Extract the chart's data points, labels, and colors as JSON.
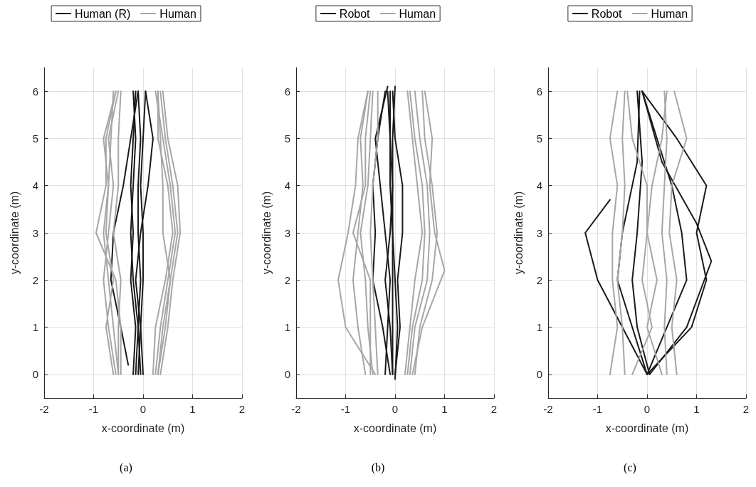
{
  "chart_data": [
    {
      "type": "line",
      "xlabel": "x-coordinate (m)",
      "ylabel": "y-coordinate (m)",
      "xlim": [
        -2,
        2
      ],
      "xticks": [
        -2,
        -1,
        0,
        1,
        2
      ],
      "ylim": [
        -0.5,
        6.5
      ],
      "yticks": [
        0,
        1,
        2,
        3,
        4,
        5,
        6
      ],
      "grid": true,
      "legend": "top",
      "annotations": [
        "(a)"
      ],
      "series": [
        {
          "name": "Human (R)",
          "color": "#1a1a1a",
          "x": [
            -0.05,
            -0.1,
            -0.05,
            -0.1,
            -0.1,
            -0.05,
            -0.1
          ],
          "values": [
            0,
            1,
            2,
            3,
            4,
            5,
            6
          ]
        },
        {
          "color": "#1a1a1a",
          "x": [
            -0.15,
            -0.1,
            -0.2,
            -0.25,
            -0.2,
            -0.15,
            -0.2
          ],
          "values": [
            0,
            1,
            2,
            3,
            4,
            5,
            6
          ]
        },
        {
          "color": "#1a1a1a",
          "x": [
            0.0,
            -0.05,
            0.0,
            0.0,
            -0.05,
            0.0,
            0.05
          ],
          "values": [
            0,
            1,
            2,
            3,
            4,
            5,
            6
          ]
        },
        {
          "color": "#1a1a1a",
          "x": [
            -0.3,
            -0.45,
            -0.65,
            -0.6,
            -0.4,
            -0.25,
            -0.1
          ],
          "values": [
            0.2,
            1,
            2,
            3,
            4,
            5,
            6
          ]
        },
        {
          "color": "#1a1a1a",
          "x": [
            -0.1,
            -0.05,
            -0.15,
            -0.05,
            0.1,
            0.2,
            0.05
          ],
          "values": [
            0,
            1,
            2,
            3,
            4,
            5,
            6
          ]
        },
        {
          "color": "#1a1a1a",
          "x": [
            -0.2,
            -0.15,
            -0.25,
            -0.2,
            -0.25,
            -0.2,
            -0.15
          ],
          "values": [
            0,
            1,
            2,
            3,
            4,
            5,
            6
          ]
        },
        {
          "name": "Human",
          "color": "#a6a6a6",
          "x": [
            -0.5,
            -0.6,
            -0.7,
            -0.8,
            -0.7,
            -0.65,
            -0.6
          ],
          "values": [
            0,
            1,
            2,
            3,
            4,
            5,
            6
          ]
        },
        {
          "color": "#a6a6a6",
          "x": [
            -0.45,
            -0.45,
            -0.55,
            -0.95,
            -0.75,
            -0.75,
            -0.55
          ],
          "values": [
            0,
            1,
            2,
            3,
            4,
            5,
            6
          ]
        },
        {
          "color": "#a6a6a6",
          "x": [
            -0.55,
            -0.7,
            -0.8,
            -0.7,
            -0.6,
            -0.7,
            -0.5
          ],
          "values": [
            0,
            1,
            2,
            3,
            4,
            5,
            6
          ]
        },
        {
          "color": "#a6a6a6",
          "x": [
            -0.5,
            -0.5,
            -0.45,
            -0.6,
            -0.5,
            -0.5,
            -0.45
          ],
          "values": [
            0,
            1,
            2,
            3,
            4,
            5,
            6
          ]
        },
        {
          "color": "#a6a6a6",
          "x": [
            -0.6,
            -0.75,
            -0.6,
            -0.75,
            -0.7,
            -0.8,
            -0.55
          ],
          "values": [
            0,
            1,
            2,
            3,
            4,
            5,
            6
          ]
        },
        {
          "color": "#a6a6a6",
          "x": [
            0.3,
            0.4,
            0.55,
            0.7,
            0.6,
            0.45,
            0.35
          ],
          "values": [
            0,
            1,
            2,
            3,
            4,
            5,
            6
          ]
        },
        {
          "color": "#a6a6a6",
          "x": [
            0.2,
            0.25,
            0.45,
            0.6,
            0.5,
            0.3,
            0.3
          ],
          "values": [
            0,
            1,
            2,
            3,
            4,
            5,
            6
          ]
        },
        {
          "color": "#a6a6a6",
          "x": [
            0.35,
            0.5,
            0.6,
            0.75,
            0.7,
            0.5,
            0.4
          ],
          "values": [
            0,
            1,
            2,
            3,
            4,
            5,
            6
          ]
        },
        {
          "color": "#a6a6a6",
          "x": [
            0.25,
            0.35,
            0.5,
            0.65,
            0.55,
            0.4,
            0.25
          ],
          "values": [
            0,
            1,
            2,
            3,
            4,
            5,
            6
          ]
        },
        {
          "color": "#a6a6a6",
          "x": [
            0.3,
            0.45,
            0.55,
            0.4,
            0.4,
            0.35,
            0.3
          ],
          "values": [
            0,
            1,
            2,
            3,
            4,
            5,
            6
          ]
        }
      ]
    },
    {
      "type": "line",
      "xlabel": "x-coordinate (m)",
      "ylabel": "y-coordinate (m)",
      "xlim": [
        -2,
        2
      ],
      "xticks": [
        -2,
        -1,
        0,
        1,
        2
      ],
      "ylim": [
        -0.5,
        6.5
      ],
      "yticks": [
        0,
        1,
        2,
        3,
        4,
        5,
        6
      ],
      "grid": true,
      "legend": "top",
      "annotations": [
        "(b)"
      ],
      "series": [
        {
          "name": "Robot",
          "color": "#1a1a1a",
          "x": [
            -0.05,
            -0.05,
            -0.05,
            -0.05,
            -0.1,
            -0.1,
            -0.1
          ],
          "values": [
            0,
            1,
            2,
            3,
            4,
            5,
            6
          ]
        },
        {
          "color": "#1a1a1a",
          "x": [
            0.0,
            0.05,
            0.0,
            -0.05,
            -0.05,
            -0.1,
            -0.15
          ],
          "values": [
            -0.1,
            1,
            2,
            3,
            4,
            5,
            6
          ]
        },
        {
          "color": "#1a1a1a",
          "x": [
            -0.1,
            -0.25,
            -0.45,
            -0.4,
            -0.45,
            -0.35,
            -0.2
          ],
          "values": [
            0,
            1,
            2,
            3,
            4,
            5,
            6
          ]
        },
        {
          "color": "#1a1a1a",
          "x": [
            -0.2,
            -0.15,
            -0.1,
            -0.2,
            -0.3,
            -0.4,
            -0.15
          ],
          "values": [
            0,
            1,
            2,
            3,
            4,
            5,
            6.1
          ]
        },
        {
          "color": "#1a1a1a",
          "x": [
            0.0,
            0.1,
            0.05,
            0.15,
            0.15,
            0.0,
            -0.05
          ],
          "values": [
            0,
            1,
            2,
            3,
            4,
            5,
            6
          ]
        },
        {
          "color": "#1a1a1a",
          "x": [
            -0.05,
            -0.1,
            -0.2,
            -0.1,
            -0.05,
            -0.05,
            0.0
          ],
          "values": [
            0,
            1,
            2,
            3,
            4,
            5,
            6.1
          ]
        },
        {
          "name": "Human",
          "color": "#a6a6a6",
          "x": [
            -0.6,
            -0.75,
            -0.85,
            -0.75,
            -0.65,
            -0.7,
            -0.55
          ],
          "values": [
            0,
            1,
            2,
            3,
            4,
            5,
            6
          ]
        },
        {
          "color": "#a6a6a6",
          "x": [
            -0.4,
            -1.0,
            -1.15,
            -0.95,
            -0.8,
            -0.75,
            -0.55
          ],
          "values": [
            0,
            1,
            2,
            3,
            4,
            5,
            6
          ]
        },
        {
          "color": "#a6a6a6",
          "x": [
            -0.45,
            -0.55,
            -0.6,
            -0.7,
            -0.55,
            -0.5,
            -0.45
          ],
          "values": [
            0,
            1,
            2,
            3,
            4,
            5,
            6
          ]
        },
        {
          "color": "#a6a6a6",
          "x": [
            -0.5,
            -0.5,
            -0.5,
            -0.85,
            -0.6,
            -0.6,
            -0.5
          ],
          "values": [
            0,
            1,
            2,
            3,
            4,
            5,
            6
          ]
        },
        {
          "color": "#a6a6a6",
          "x": [
            -0.35,
            -0.4,
            -0.45,
            -0.5,
            -0.45,
            -0.35,
            -0.35
          ],
          "values": [
            0,
            1,
            2,
            3,
            4,
            5,
            6
          ]
        },
        {
          "color": "#a6a6a6",
          "x": [
            0.3,
            0.4,
            0.65,
            0.7,
            0.65,
            0.5,
            0.4
          ],
          "values": [
            0,
            1,
            2,
            3,
            4,
            5,
            6
          ]
        },
        {
          "color": "#a6a6a6",
          "x": [
            0.25,
            0.35,
            0.55,
            0.6,
            0.55,
            0.4,
            0.3
          ],
          "values": [
            0,
            1,
            2,
            3,
            4,
            5,
            6
          ]
        },
        {
          "color": "#a6a6a6",
          "x": [
            0.4,
            0.5,
            0.75,
            0.85,
            0.75,
            0.6,
            0.55
          ],
          "values": [
            0,
            1,
            2,
            3,
            4,
            5,
            6
          ]
        },
        {
          "color": "#a6a6a6",
          "x": [
            0.35,
            0.55,
            1.0,
            0.8,
            0.7,
            0.75,
            0.6
          ],
          "values": [
            0,
            1,
            2.2,
            3,
            4,
            5,
            6
          ]
        },
        {
          "color": "#a6a6a6",
          "x": [
            0.2,
            0.3,
            0.4,
            0.55,
            0.45,
            0.35,
            0.25
          ],
          "values": [
            0,
            1,
            2,
            3,
            4,
            5,
            6
          ]
        }
      ]
    },
    {
      "type": "line",
      "xlabel": "x-coordinate (m)",
      "ylabel": "y-coordinate (m)",
      "xlim": [
        -2,
        2
      ],
      "xticks": [
        -2,
        -1,
        0,
        1,
        2
      ],
      "ylim": [
        -0.5,
        6.5
      ],
      "yticks": [
        0,
        1,
        2,
        3,
        4,
        5,
        6
      ],
      "grid": true,
      "legend": "top",
      "annotations": [
        "(c)"
      ],
      "series": [
        {
          "name": "Robot",
          "color": "#1a1a1a",
          "x": [
            0.0,
            0.9,
            1.2,
            1.0,
            1.2,
            0.6,
            -0.1
          ],
          "values": [
            0,
            1,
            2,
            3,
            4,
            5,
            6
          ]
        },
        {
          "color": "#1a1a1a",
          "x": [
            0.05,
            0.8,
            1.3,
            1.0,
            0.3,
            -0.1
          ],
          "values": [
            0,
            1,
            2.4,
            3.2,
            4.5,
            6
          ]
        },
        {
          "color": "#1a1a1a",
          "x": [
            0.0,
            -0.5,
            -1.0,
            -1.25,
            -0.75
          ],
          "values": [
            0,
            1,
            2,
            3,
            3.7
          ]
        },
        {
          "color": "#1a1a1a",
          "x": [
            0.0,
            -0.3,
            -0.6,
            -0.5,
            -0.2,
            -0.15
          ],
          "values": [
            0,
            1,
            2,
            3,
            4.5,
            6
          ]
        },
        {
          "color": "#1a1a1a",
          "x": [
            0.0,
            0.4,
            0.8,
            0.7,
            0.5,
            0.2,
            -0.1
          ],
          "values": [
            0,
            1,
            2,
            3,
            4,
            5,
            6
          ]
        },
        {
          "color": "#1a1a1a",
          "x": [
            0.05,
            -0.2,
            -0.3,
            -0.2,
            -0.1,
            -0.2
          ],
          "values": [
            0,
            1,
            2,
            3,
            4.5,
            6
          ]
        },
        {
          "name": "Human",
          "color": "#a6a6a6",
          "x": [
            -0.45,
            -0.5,
            -0.6,
            -0.5,
            -0.45,
            -0.5,
            -0.45
          ],
          "values": [
            0,
            1,
            2,
            3,
            4,
            5,
            6
          ]
        },
        {
          "color": "#a6a6a6",
          "x": [
            -0.75,
            -0.6,
            -0.7,
            -0.7,
            -0.6,
            -0.75,
            -0.6
          ],
          "values": [
            0,
            1,
            2,
            3,
            4,
            5,
            6
          ]
        },
        {
          "color": "#a6a6a6",
          "x": [
            0.4,
            0.35,
            0.4,
            0.3,
            0.35,
            0.4,
            0.35
          ],
          "values": [
            0,
            1,
            2,
            3,
            4,
            5,
            6
          ]
        },
        {
          "color": "#a6a6a6",
          "x": [
            0.6,
            0.5,
            0.6,
            0.45,
            0.5,
            0.8,
            0.55
          ],
          "values": [
            0,
            1,
            2,
            3,
            4,
            5,
            6
          ]
        },
        {
          "color": "#a6a6a6",
          "x": [
            -0.3,
            0.1,
            -0.1,
            0.0,
            0.0,
            -0.3,
            -0.4
          ],
          "values": [
            0,
            1,
            2,
            3,
            4,
            5,
            6
          ]
        },
        {
          "color": "#a6a6a6",
          "x": [
            0.3,
            0.0,
            0.2,
            0.0,
            0.1,
            0.3,
            0.4
          ],
          "values": [
            0,
            1,
            2,
            3,
            4,
            5,
            6
          ]
        }
      ]
    }
  ]
}
